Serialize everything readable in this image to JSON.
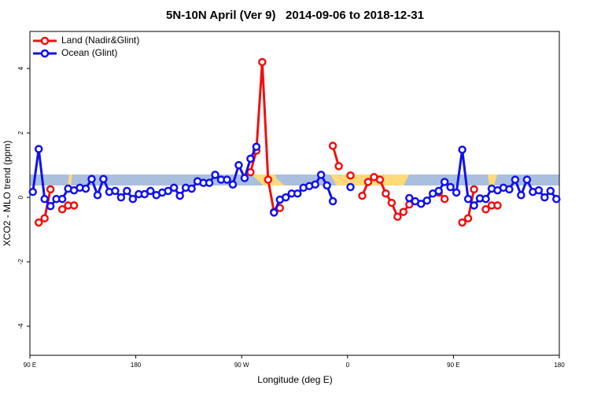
{
  "chart_data": {
    "type": "line",
    "title": "5N-10N April (Ver 9)   2014-09-06 to 2018-12-31",
    "x_label": "Longitude (deg E)",
    "y_label": "XCO2 - MLO trend (ppm)",
    "legend": "top-left",
    "xlim": [
      90,
      540
    ],
    "ylim": [
      -4.9,
      5.15
    ],
    "xticks": [
      {
        "value": 90,
        "label": "90 E"
      },
      {
        "value": 180,
        "label": "180"
      },
      {
        "value": 270,
        "label": "90 W"
      },
      {
        "value": 360,
        "label": "0"
      },
      {
        "value": 450,
        "label": "90 E"
      },
      {
        "value": 540,
        "label": "180"
      }
    ],
    "yticks": [
      -4,
      -2,
      0,
      2,
      4
    ],
    "x": [
      92.5,
      97.5,
      102.5,
      107.5,
      112.5,
      117.5,
      122.5,
      127.5,
      132.5,
      137.5,
      142.5,
      147.5,
      152.5,
      157.5,
      162.5,
      167.5,
      172.5,
      177.5,
      182.5,
      187.5,
      192.5,
      197.5,
      202.5,
      207.5,
      212.5,
      217.5,
      222.5,
      227.5,
      232.5,
      237.5,
      242.5,
      247.5,
      252.5,
      257.5,
      262.5,
      267.5,
      272.5,
      277.5,
      282.5,
      287.5,
      292.5,
      297.5,
      302.5,
      307.5,
      312.5,
      317.5,
      322.5,
      327.5,
      332.5,
      337.5,
      342.5,
      347.5,
      352.5,
      357.5,
      362.5,
      367.5,
      372.5,
      377.5,
      382.5,
      387.5,
      392.5,
      397.5,
      402.5,
      407.5,
      412.5,
      417.5,
      422.5,
      427.5,
      432.5,
      437.5,
      442.5,
      447.5,
      452.5,
      457.5,
      462.5,
      467.5,
      472.5,
      477.5,
      482.5,
      487.5,
      492.5,
      497.5,
      502.5,
      507.5,
      512.5,
      517.5,
      522.5,
      527.5,
      532.5,
      537.5
    ],
    "series": [
      {
        "name": "Land (Nadir&Glint)",
        "color": "#ee1111",
        "values": [
          null,
          -0.78,
          -0.65,
          0.25,
          null,
          -0.37,
          -0.25,
          -0.25,
          null,
          null,
          null,
          null,
          null,
          null,
          null,
          null,
          null,
          null,
          null,
          null,
          null,
          null,
          null,
          null,
          null,
          null,
          null,
          null,
          null,
          null,
          null,
          null,
          null,
          null,
          null,
          null,
          null,
          0.78,
          1.45,
          4.2,
          0.55,
          -0.45,
          -0.33,
          null,
          null,
          null,
          null,
          null,
          null,
          null,
          null,
          1.6,
          0.97,
          null,
          0.68,
          null,
          0.05,
          0.48,
          0.63,
          0.55,
          0.12,
          -0.17,
          -0.6,
          -0.45,
          -0.22,
          null,
          null,
          null,
          null,
          0.15,
          -0.05,
          null,
          null,
          -0.78,
          -0.65,
          0.25,
          null,
          -0.37,
          -0.25,
          -0.25,
          null,
          null,
          null,
          null,
          null,
          null,
          null,
          null,
          null,
          null
        ]
      },
      {
        "name": "Ocean (Glint)",
        "color": "#1111ee",
        "values": [
          0.17,
          1.5,
          -0.05,
          -0.27,
          -0.05,
          -0.05,
          0.27,
          0.22,
          0.3,
          0.27,
          0.57,
          0.07,
          0.57,
          0.17,
          0.2,
          0,
          0.2,
          -0.05,
          0.1,
          0.1,
          0.2,
          0.07,
          0.15,
          0.2,
          0.3,
          0.05,
          0.3,
          0.27,
          0.5,
          0.45,
          0.45,
          0.7,
          0.55,
          0.55,
          0.4,
          1.0,
          0.6,
          1.2,
          1.57,
          null,
          null,
          -0.47,
          -0.07,
          0,
          0.12,
          0.12,
          0.3,
          0.35,
          0.4,
          0.7,
          0.37,
          -0.12,
          null,
          null,
          0.32,
          null,
          null,
          null,
          null,
          null,
          null,
          null,
          null,
          null,
          -0.02,
          -0.12,
          -0.2,
          -0.1,
          0.12,
          0.2,
          0.48,
          0.32,
          0.15,
          1.48,
          -0.05,
          -0.25,
          -0.03,
          -0.05,
          0.27,
          0.22,
          0.3,
          0.25,
          0.55,
          0.07,
          0.55,
          0.17,
          0.22,
          0,
          0.2,
          -0.05
        ]
      }
    ]
  }
}
